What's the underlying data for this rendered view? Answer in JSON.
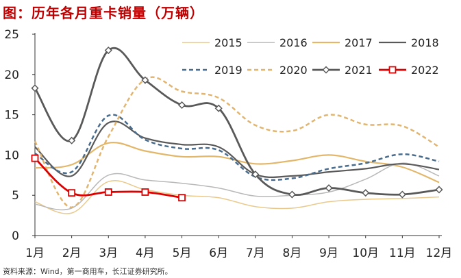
{
  "chart_data": {
    "type": "line",
    "title": "图：历年各月重卡销量（万辆）",
    "source": "资料来源：Wind，第一商用车，长江证券研究所。",
    "xlabel": "",
    "ylabel": "",
    "ylim": [
      0,
      25
    ],
    "yticks": [
      0,
      5,
      10,
      15,
      20,
      25
    ],
    "categories": [
      "1月",
      "2月",
      "3月",
      "4月",
      "5月",
      "6月",
      "7月",
      "8月",
      "9月",
      "10月",
      "11月",
      "12月"
    ],
    "legend_position": "top-right",
    "series": [
      {
        "name": "2015",
        "color": "#E9C98C",
        "dash": "solid",
        "width": 1.5,
        "marker": "none",
        "values": [
          4.2,
          2.8,
          6.7,
          5.7,
          5.0,
          4.7,
          3.6,
          3.4,
          4.2,
          4.5,
          4.6,
          4.8
        ]
      },
      {
        "name": "2016",
        "color": "#B8B8B8",
        "dash": "solid",
        "width": 1.5,
        "marker": "none",
        "values": [
          3.9,
          3.4,
          7.5,
          6.9,
          6.5,
          5.9,
          4.9,
          5.0,
          5.4,
          7.0,
          9.0,
          7.4
        ]
      },
      {
        "name": "2017",
        "color": "#E3B76A",
        "dash": "solid",
        "width": 2.2,
        "marker": "none",
        "values": [
          8.4,
          8.8,
          11.5,
          10.5,
          9.8,
          9.8,
          8.9,
          9.3,
          10.0,
          9.2,
          8.5,
          6.6
        ]
      },
      {
        "name": "2018",
        "color": "#595959",
        "dash": "solid",
        "width": 2.2,
        "marker": "none",
        "values": [
          11.0,
          7.4,
          14.0,
          12.1,
          11.3,
          11.0,
          7.6,
          7.4,
          7.9,
          8.3,
          8.9,
          8.2
        ]
      },
      {
        "name": "2019",
        "color": "#4A6C8C",
        "dash": "dashed",
        "width": 2.5,
        "marker": "none",
        "values": [
          10.2,
          7.9,
          14.9,
          11.9,
          10.8,
          10.6,
          7.3,
          7.1,
          8.3,
          9.0,
          10.1,
          9.2
        ]
      },
      {
        "name": "2020",
        "color": "#E1B56F",
        "dash": "dashed",
        "width": 2.5,
        "marker": "none",
        "values": [
          11.7,
          3.5,
          12.3,
          19.4,
          17.9,
          17.1,
          13.7,
          13.0,
          15.0,
          13.8,
          13.6,
          11.0
        ]
      },
      {
        "name": "2021",
        "color": "#595959",
        "dash": "solid",
        "width": 2.8,
        "marker": "diamond",
        "values": [
          18.3,
          11.8,
          23.0,
          19.3,
          16.2,
          15.8,
          7.6,
          5.1,
          5.9,
          5.3,
          5.1,
          5.7
        ]
      },
      {
        "name": "2022",
        "color": "#DD0000",
        "dash": "solid",
        "width": 2.8,
        "marker": "square",
        "values": [
          9.6,
          5.3,
          5.4,
          5.4,
          4.7,
          null,
          null,
          null,
          null,
          null,
          null,
          null
        ]
      }
    ]
  }
}
